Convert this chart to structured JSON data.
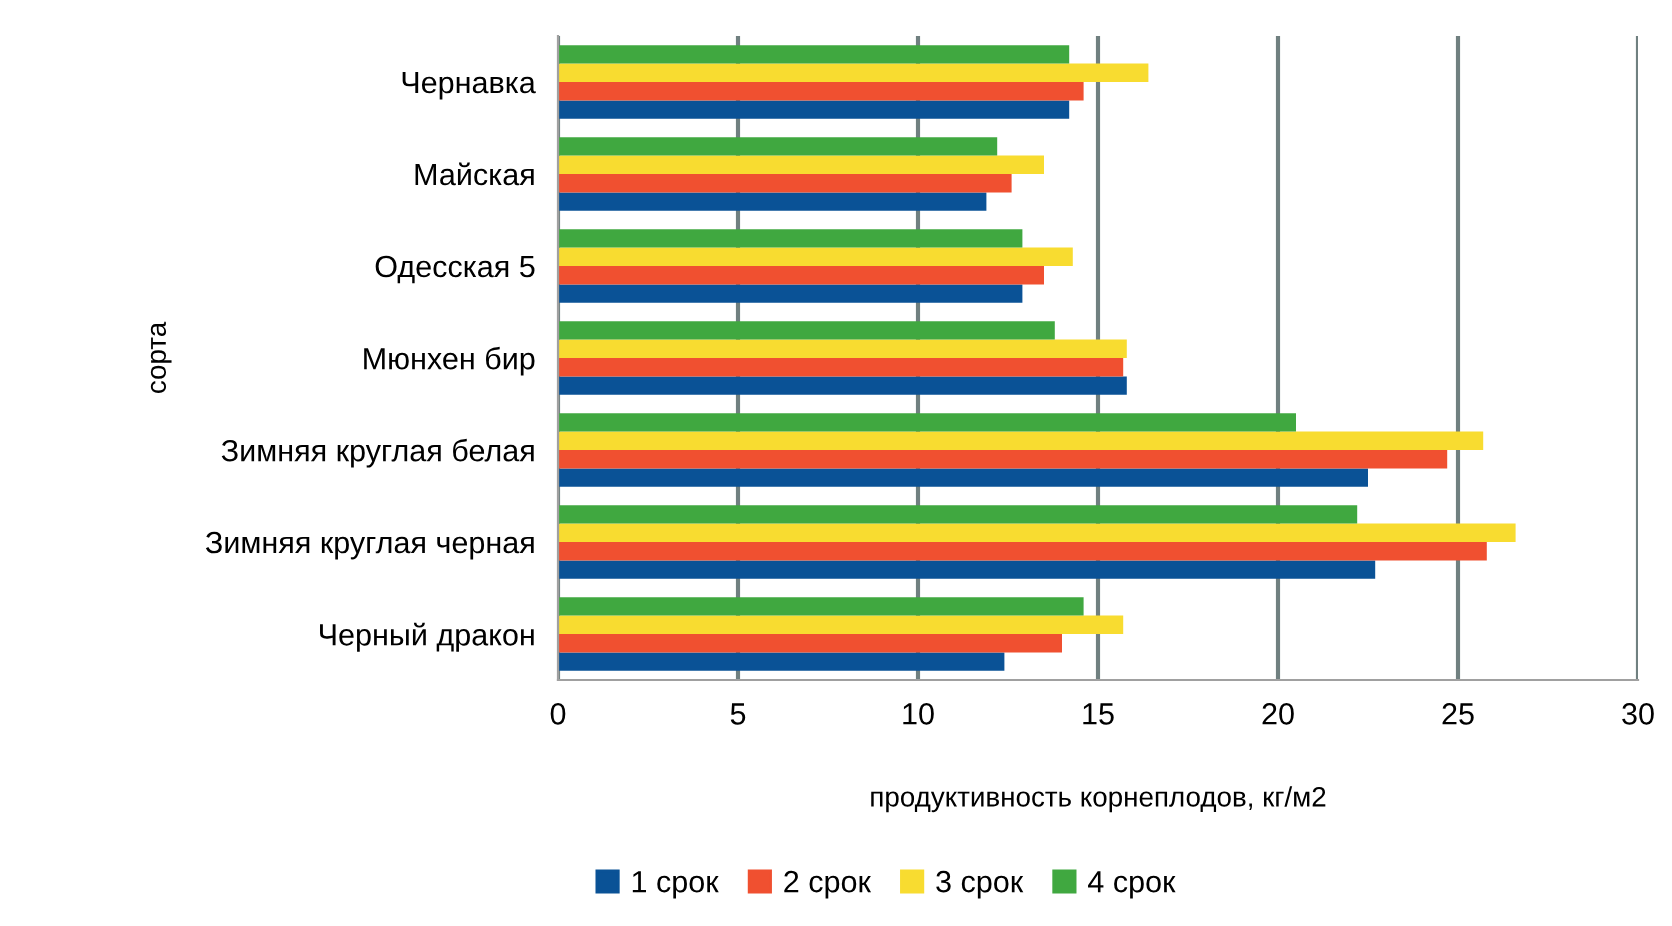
{
  "chart_data": {
    "type": "bar",
    "orientation": "horizontal",
    "xlabel": "продуктивность корнеплодов, кг/м2",
    "ylabel": "сорта",
    "categories": [
      "Чернавка",
      "Майская",
      "Одесская 5",
      "Мюнхен бир",
      "Зимняя круглая белая",
      "Зимняя круглая черная",
      "Черный дракон"
    ],
    "series": [
      {
        "name": "1 срок",
        "color": "#0a5296",
        "values": [
          14.2,
          11.9,
          12.9,
          15.8,
          22.5,
          22.7,
          12.4
        ]
      },
      {
        "name": "2 срок",
        "color": "#f05030",
        "values": [
          14.6,
          12.6,
          13.5,
          15.7,
          24.7,
          25.8,
          14.0
        ]
      },
      {
        "name": "3 срок",
        "color": "#f8dc30",
        "values": [
          16.4,
          13.5,
          14.3,
          15.8,
          25.7,
          26.6,
          15.7
        ]
      },
      {
        "name": "4 срок",
        "color": "#40a840",
        "values": [
          14.2,
          12.2,
          12.9,
          13.8,
          20.5,
          22.2,
          14.6
        ]
      }
    ],
    "xlim": [
      0,
      30
    ],
    "xticks": [
      0,
      5,
      10,
      15,
      20,
      25,
      30
    ],
    "grid": "x",
    "legend": "bottom"
  }
}
